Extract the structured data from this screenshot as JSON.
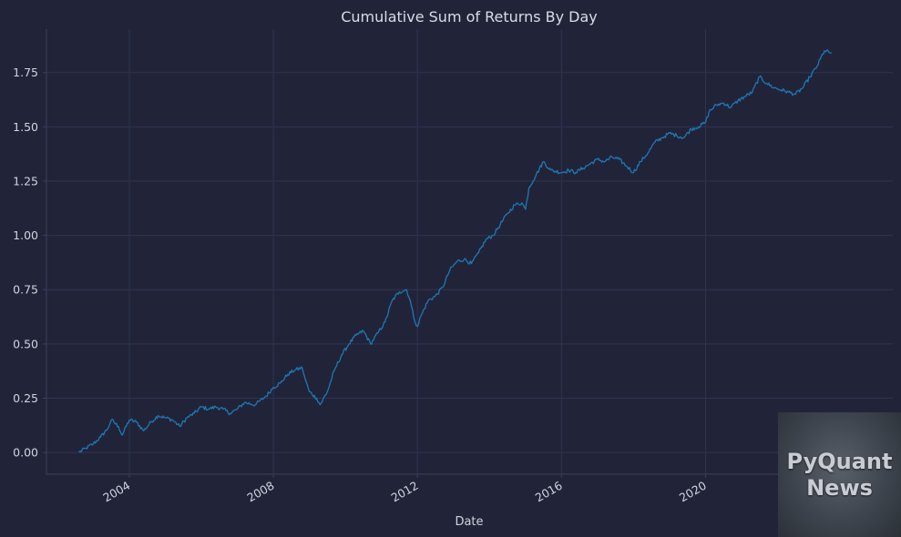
{
  "chart_data": {
    "type": "line",
    "title": "Cumulative Sum of Returns By Day",
    "xlabel": "Date",
    "ylabel": "",
    "x_tick_labels": [
      "2004",
      "2008",
      "2012",
      "2016",
      "2020"
    ],
    "y_tick_labels": [
      "0.00",
      "0.25",
      "0.50",
      "0.75",
      "1.00",
      "1.25",
      "1.50",
      "1.75"
    ],
    "xlim": [
      2001.7,
      2025.2
    ],
    "ylim": [
      -0.1,
      1.95
    ],
    "grid": true,
    "series": [
      {
        "color": "#1f77b4",
        "points": [
          [
            2002.6,
            0.0
          ],
          [
            2002.8,
            0.02
          ],
          [
            2003.0,
            0.04
          ],
          [
            2003.2,
            0.07
          ],
          [
            2003.4,
            0.11
          ],
          [
            2003.5,
            0.15
          ],
          [
            2003.7,
            0.12
          ],
          [
            2003.8,
            0.08
          ],
          [
            2004.0,
            0.15
          ],
          [
            2004.2,
            0.14
          ],
          [
            2004.4,
            0.1
          ],
          [
            2004.6,
            0.14
          ],
          [
            2004.8,
            0.17
          ],
          [
            2005.0,
            0.16
          ],
          [
            2005.2,
            0.15
          ],
          [
            2005.4,
            0.12
          ],
          [
            2005.6,
            0.16
          ],
          [
            2005.8,
            0.18
          ],
          [
            2006.0,
            0.21
          ],
          [
            2006.2,
            0.2
          ],
          [
            2006.4,
            0.21
          ],
          [
            2006.6,
            0.2
          ],
          [
            2006.8,
            0.18
          ],
          [
            2007.0,
            0.2
          ],
          [
            2007.2,
            0.23
          ],
          [
            2007.5,
            0.22
          ],
          [
            2007.8,
            0.26
          ],
          [
            2008.0,
            0.3
          ],
          [
            2008.2,
            0.32
          ],
          [
            2008.4,
            0.36
          ],
          [
            2008.6,
            0.38
          ],
          [
            2008.8,
            0.39
          ],
          [
            2008.9,
            0.33
          ],
          [
            2009.0,
            0.28
          ],
          [
            2009.2,
            0.25
          ],
          [
            2009.3,
            0.22
          ],
          [
            2009.5,
            0.28
          ],
          [
            2009.7,
            0.38
          ],
          [
            2009.9,
            0.45
          ],
          [
            2010.1,
            0.5
          ],
          [
            2010.3,
            0.54
          ],
          [
            2010.5,
            0.56
          ],
          [
            2010.7,
            0.5
          ],
          [
            2010.9,
            0.55
          ],
          [
            2011.1,
            0.6
          ],
          [
            2011.3,
            0.7
          ],
          [
            2011.5,
            0.74
          ],
          [
            2011.7,
            0.75
          ],
          [
            2011.8,
            0.7
          ],
          [
            2011.9,
            0.62
          ],
          [
            2012.0,
            0.58
          ],
          [
            2012.1,
            0.63
          ],
          [
            2012.3,
            0.7
          ],
          [
            2012.5,
            0.72
          ],
          [
            2012.7,
            0.76
          ],
          [
            2012.9,
            0.84
          ],
          [
            2013.1,
            0.88
          ],
          [
            2013.3,
            0.89
          ],
          [
            2013.5,
            0.87
          ],
          [
            2013.7,
            0.92
          ],
          [
            2013.9,
            0.98
          ],
          [
            2014.1,
            1.0
          ],
          [
            2014.3,
            1.05
          ],
          [
            2014.5,
            1.1
          ],
          [
            2014.7,
            1.14
          ],
          [
            2014.9,
            1.15
          ],
          [
            2015.0,
            1.12
          ],
          [
            2015.1,
            1.22
          ],
          [
            2015.3,
            1.28
          ],
          [
            2015.5,
            1.34
          ],
          [
            2015.7,
            1.3
          ],
          [
            2016.0,
            1.29
          ],
          [
            2016.2,
            1.3
          ],
          [
            2016.4,
            1.29
          ],
          [
            2016.6,
            1.31
          ],
          [
            2016.8,
            1.33
          ],
          [
            2017.0,
            1.35
          ],
          [
            2017.2,
            1.34
          ],
          [
            2017.4,
            1.36
          ],
          [
            2017.6,
            1.35
          ],
          [
            2017.8,
            1.32
          ],
          [
            2018.0,
            1.29
          ],
          [
            2018.2,
            1.34
          ],
          [
            2018.4,
            1.38
          ],
          [
            2018.6,
            1.43
          ],
          [
            2018.8,
            1.45
          ],
          [
            2019.0,
            1.47
          ],
          [
            2019.2,
            1.46
          ],
          [
            2019.4,
            1.45
          ],
          [
            2019.6,
            1.49
          ],
          [
            2019.8,
            1.5
          ],
          [
            2020.0,
            1.52
          ],
          [
            2020.1,
            1.57
          ],
          [
            2020.3,
            1.6
          ],
          [
            2020.5,
            1.61
          ],
          [
            2020.7,
            1.59
          ],
          [
            2020.9,
            1.62
          ],
          [
            2021.1,
            1.64
          ],
          [
            2021.3,
            1.66
          ],
          [
            2021.5,
            1.73
          ],
          [
            2021.7,
            1.7
          ],
          [
            2021.9,
            1.68
          ],
          [
            2022.1,
            1.67
          ],
          [
            2022.3,
            1.66
          ],
          [
            2022.5,
            1.65
          ],
          [
            2022.7,
            1.68
          ],
          [
            2022.9,
            1.73
          ],
          [
            2023.1,
            1.78
          ],
          [
            2023.3,
            1.85
          ],
          [
            2023.5,
            1.84
          ]
        ]
      }
    ]
  },
  "watermark": {
    "line1": "PyQuant",
    "line2": "News"
  }
}
